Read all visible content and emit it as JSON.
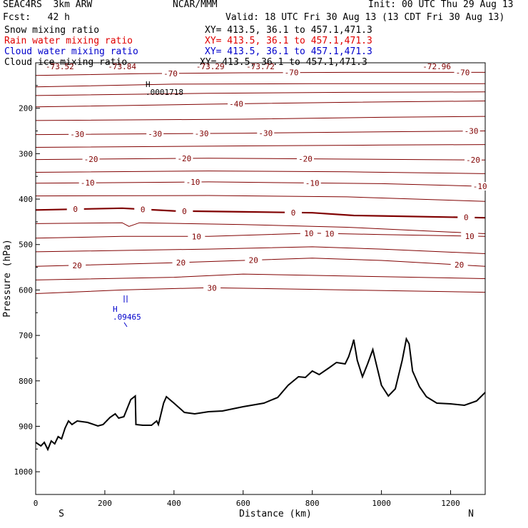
{
  "header": {
    "model": "SEAC4RS  3km ARW",
    "org": "NCAR/MMM",
    "init": "Init: 00 UTC Thu 29 Aug 13",
    "fcst": "Fcst:   42 h",
    "valid": "Valid: 18 UTC Fri 30 Aug 13 (13 CDT Fri 30 Aug 13)",
    "fields": [
      {
        "name": "Snow mixing ratio",
        "xy": "XY= 413.5, 36.1 to 457.1,471.3",
        "color": "#000000"
      },
      {
        "name": "Rain water mixing ratio",
        "xy": "XY= 413.5, 36.1 to 457.1,471.3",
        "color": "#e00000"
      },
      {
        "name": "Cloud water mixing ratio",
        "xy": "XY= 413.5, 36.1 to 457.1,471.3",
        "color": "#0000cc"
      },
      {
        "name": "Cloud ice mixing ratio",
        "xy": "XY= 413.5, 36.1 to 457.1,471.3",
        "color": "#000000"
      }
    ]
  },
  "chart_data": {
    "type": "cross-section",
    "xlabel": "Distance (km)",
    "ylabel": "Pressure (hPa)",
    "xlim": [
      0,
      1300
    ],
    "ylim": [
      1050,
      100
    ],
    "x_ticks": [
      0,
      200,
      400,
      600,
      800,
      1000,
      1200
    ],
    "y_ticks": [
      200,
      300,
      400,
      500,
      600,
      700,
      800,
      900,
      1000
    ],
    "y_tick_labels": [
      "200",
      "300",
      "400",
      "500",
      "600",
      "700",
      "800",
      "900",
      "1000"
    ],
    "end_labels": {
      "left": "S",
      "right": "N"
    },
    "isotherm_color": "#800000",
    "terrain_color": "#000000",
    "top_labels": [
      "-73.52",
      "-73.84",
      "-73.29",
      "-73.72",
      "-72.96"
    ],
    "isotherms": [
      {
        "value": -70,
        "p": [
          [
            0,
            128
          ],
          [
            300,
            124
          ],
          [
            600,
            122
          ],
          [
            900,
            121
          ],
          [
            1300,
            121
          ]
        ],
        "labels": [
          [
            390,
            -70
          ],
          [
            740,
            -70
          ],
          [
            1235,
            -70
          ]
        ]
      },
      {
        "value": -60,
        "p": [
          [
            0,
            153
          ],
          [
            400,
            147
          ],
          [
            800,
            146
          ],
          [
            1300,
            146
          ]
        ],
        "labels": []
      },
      {
        "value": -50,
        "p": [
          [
            0,
            172
          ],
          [
            500,
            167
          ],
          [
            900,
            165
          ],
          [
            1300,
            164
          ]
        ],
        "labels": []
      },
      {
        "value": -40,
        "p": [
          [
            0,
            197
          ],
          [
            500,
            191
          ],
          [
            900,
            187
          ],
          [
            1300,
            184
          ]
        ],
        "labels": [
          [
            580,
            -40
          ]
        ]
      },
      {
        "value": -35,
        "p": [
          [
            0,
            227
          ],
          [
            600,
            224
          ],
          [
            1000,
            220
          ],
          [
            1300,
            218
          ]
        ],
        "labels": []
      },
      {
        "value": -30,
        "p": [
          [
            0,
            258
          ],
          [
            600,
            255
          ],
          [
            1000,
            252
          ],
          [
            1300,
            250
          ]
        ],
        "labels": [
          [
            120,
            -30
          ],
          [
            345,
            -30
          ],
          [
            480,
            -30
          ],
          [
            665,
            -30
          ],
          [
            1260,
            -30
          ]
        ]
      },
      {
        "value": -25,
        "p": [
          [
            0,
            286
          ],
          [
            600,
            283
          ],
          [
            1000,
            281
          ],
          [
            1300,
            280
          ]
        ],
        "labels": []
      },
      {
        "value": -20,
        "p": [
          [
            0,
            313
          ],
          [
            500,
            310
          ],
          [
            900,
            312
          ],
          [
            1300,
            314
          ]
        ],
        "labels": [
          [
            160,
            -20
          ],
          [
            430,
            -20
          ],
          [
            780,
            -20
          ],
          [
            1265,
            -20
          ]
        ]
      },
      {
        "value": -15,
        "p": [
          [
            0,
            341
          ],
          [
            500,
            338
          ],
          [
            900,
            340
          ],
          [
            1300,
            344
          ]
        ],
        "labels": []
      },
      {
        "value": -10,
        "p": [
          [
            0,
            365
          ],
          [
            500,
            362
          ],
          [
            1000,
            366
          ],
          [
            1300,
            372
          ]
        ],
        "labels": [
          [
            150,
            -10
          ],
          [
            455,
            -10
          ],
          [
            800,
            -10
          ],
          [
            1285,
            -10
          ]
        ]
      },
      {
        "value": -5,
        "p": [
          [
            0,
            393
          ],
          [
            500,
            392
          ],
          [
            900,
            395
          ],
          [
            1300,
            405
          ]
        ],
        "labels": []
      },
      {
        "value": 0,
        "p": [
          [
            0,
            424
          ],
          [
            250,
            420
          ],
          [
            400,
            426
          ],
          [
            600,
            428
          ],
          [
            800,
            430
          ],
          [
            920,
            436
          ],
          [
            1000,
            437
          ],
          [
            1300,
            441
          ]
        ],
        "labels": [
          [
            115,
            0
          ],
          [
            310,
            0
          ],
          [
            430,
            0
          ],
          [
            745,
            0
          ],
          [
            1245,
            0
          ]
        ]
      },
      {
        "value": 5,
        "p": [
          [
            0,
            454
          ],
          [
            250,
            452
          ],
          [
            270,
            460
          ],
          [
            300,
            452
          ],
          [
            600,
            456
          ],
          [
            900,
            462
          ],
          [
            1300,
            476
          ]
        ],
        "labels": []
      },
      {
        "value": 10,
        "p": [
          [
            0,
            486
          ],
          [
            250,
            482
          ],
          [
            500,
            482
          ],
          [
            800,
            475
          ],
          [
            1000,
            478
          ],
          [
            1300,
            482
          ]
        ],
        "labels": [
          [
            465,
            10
          ],
          [
            790,
            10
          ],
          [
            850,
            10
          ],
          [
            1255,
            10
          ]
        ]
      },
      {
        "value": 15,
        "p": [
          [
            0,
            516
          ],
          [
            500,
            510
          ],
          [
            800,
            505
          ],
          [
            1000,
            510
          ],
          [
            1300,
            520
          ]
        ],
        "labels": []
      },
      {
        "value": 20,
        "p": [
          [
            0,
            548
          ],
          [
            400,
            540
          ],
          [
            800,
            530
          ],
          [
            1000,
            535
          ],
          [
            1300,
            548
          ]
        ],
        "labels": [
          [
            120,
            20
          ],
          [
            420,
            20
          ],
          [
            630,
            20
          ],
          [
            1225,
            20
          ]
        ]
      },
      {
        "value": 25,
        "p": [
          [
            0,
            578
          ],
          [
            400,
            572
          ],
          [
            600,
            565
          ],
          [
            1300,
            575
          ]
        ],
        "labels": []
      },
      {
        "value": 30,
        "p": [
          [
            0,
            608
          ],
          [
            250,
            600
          ],
          [
            500,
            595
          ],
          [
            1300,
            605
          ]
        ],
        "labels": [
          [
            510,
            30
          ]
        ]
      }
    ],
    "terrain": [
      [
        0,
        620
      ],
      [
        15,
        625
      ],
      [
        25,
        620
      ],
      [
        35,
        630
      ],
      [
        45,
        618
      ],
      [
        55,
        622
      ],
      [
        65,
        612
      ],
      [
        75,
        615
      ],
      [
        85,
        600
      ],
      [
        95,
        590
      ],
      [
        105,
        595
      ],
      [
        120,
        590
      ],
      [
        150,
        592
      ],
      [
        180,
        597
      ],
      [
        195,
        595
      ],
      [
        215,
        585
      ],
      [
        230,
        580
      ],
      [
        240,
        586
      ],
      [
        255,
        584
      ],
      [
        275,
        560
      ],
      [
        288,
        555
      ],
      [
        290,
        595
      ],
      [
        310,
        596
      ],
      [
        335,
        596
      ],
      [
        350,
        590
      ],
      [
        355,
        595
      ],
      [
        370,
        565
      ],
      [
        378,
        556
      ],
      [
        400,
        565
      ],
      [
        430,
        578
      ],
      [
        460,
        580
      ],
      [
        500,
        577
      ],
      [
        540,
        576
      ],
      [
        600,
        570
      ],
      [
        660,
        565
      ],
      [
        700,
        557
      ],
      [
        730,
        540
      ],
      [
        760,
        528
      ],
      [
        780,
        529
      ],
      [
        800,
        520
      ],
      [
        820,
        525
      ],
      [
        850,
        515
      ],
      [
        870,
        508
      ],
      [
        895,
        510
      ],
      [
        905,
        500
      ],
      [
        915,
        485
      ],
      [
        920,
        476
      ],
      [
        930,
        505
      ],
      [
        945,
        528
      ],
      [
        960,
        510
      ],
      [
        975,
        490
      ],
      [
        985,
        510
      ],
      [
        1000,
        540
      ],
      [
        1020,
        555
      ],
      [
        1040,
        545
      ],
      [
        1060,
        505
      ],
      [
        1072,
        475
      ],
      [
        1080,
        482
      ],
      [
        1090,
        520
      ],
      [
        1110,
        542
      ],
      [
        1130,
        556
      ],
      [
        1160,
        565
      ],
      [
        1200,
        566
      ],
      [
        1240,
        568
      ],
      [
        1275,
        562
      ],
      [
        1300,
        550
      ]
    ],
    "annotations": [
      {
        "text": "H",
        "value": ".0001718",
        "color": "#000000"
      },
      {
        "text": "H",
        "value": ".09465",
        "color": "#0000cc"
      }
    ]
  }
}
